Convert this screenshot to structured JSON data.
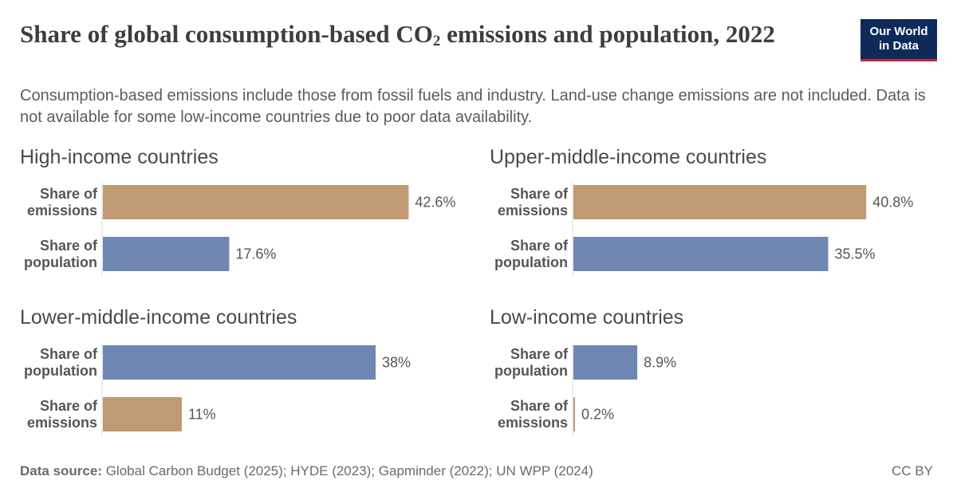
{
  "title": {
    "main": "Share of global consumption-based CO",
    "sub": "2",
    "rest": " emissions and population, 2022"
  },
  "subtitle": "Consumption-based emissions include those from fossil fuels and industry. Land-use change emissions are not included. Data is not available for some low-income countries due to poor data availability.",
  "logo": {
    "line1": "Our World",
    "line2": "in Data"
  },
  "footer": {
    "source_label": "Data source:",
    "source_text": " Global Carbon Budget (2025); HYDE (2023); Gapminder (2022); UN WPP (2024)",
    "license": "CC BY"
  },
  "colors": {
    "emissions": "#c09a72",
    "population": "#6e87b2"
  },
  "chart_data": [
    {
      "type": "bar",
      "title": "High-income countries",
      "rows": [
        {
          "label_lines": [
            "Share of",
            "emissions"
          ],
          "value": 42.6,
          "value_label": "42.6%",
          "kind": "emissions"
        },
        {
          "label_lines": [
            "Share of",
            "population"
          ],
          "value": 17.6,
          "value_label": "17.6%",
          "kind": "population"
        }
      ]
    },
    {
      "type": "bar",
      "title": "Upper-middle-income countries",
      "rows": [
        {
          "label_lines": [
            "Share of",
            "emissions"
          ],
          "value": 40.8,
          "value_label": "40.8%",
          "kind": "emissions"
        },
        {
          "label_lines": [
            "Share of",
            "population"
          ],
          "value": 35.5,
          "value_label": "35.5%",
          "kind": "population"
        }
      ]
    },
    {
      "type": "bar",
      "title": "Lower-middle-income countries",
      "rows": [
        {
          "label_lines": [
            "Share of",
            "population"
          ],
          "value": 38,
          "value_label": "38%",
          "kind": "population"
        },
        {
          "label_lines": [
            "Share of",
            "emissions"
          ],
          "value": 11,
          "value_label": "11%",
          "kind": "emissions"
        }
      ]
    },
    {
      "type": "bar",
      "title": "Low-income countries",
      "rows": [
        {
          "label_lines": [
            "Share of",
            "population"
          ],
          "value": 8.9,
          "value_label": "8.9%",
          "kind": "population"
        },
        {
          "label_lines": [
            "Share of",
            "emissions"
          ],
          "value": 0.2,
          "value_label": "0.2%",
          "kind": "emissions"
        }
      ]
    }
  ]
}
